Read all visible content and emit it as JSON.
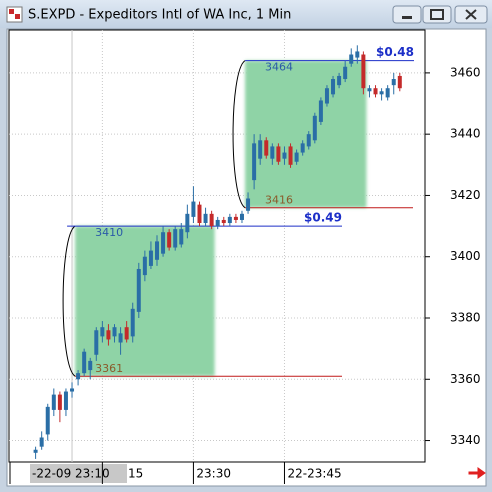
{
  "window": {
    "title": "S.EXPD - Expeditors Intl of WA Inc, 1 Min"
  },
  "chart_data": {
    "type": "candlestick",
    "categories": [
      null,
      null,
      null,
      null,
      null,
      null,
      "-22-09 23:10",
      null,
      null,
      null,
      null,
      "15",
      null,
      null,
      null,
      null,
      null,
      null,
      null,
      null,
      null,
      null,
      null,
      null,
      null,
      null,
      "23:30",
      null,
      null,
      null,
      null,
      null,
      null,
      null,
      null,
      null,
      null,
      null,
      null,
      null,
      null,
      "22-23:45",
      null,
      null,
      null,
      null,
      null,
      null,
      null,
      null,
      null,
      null,
      null,
      null,
      null,
      null,
      null,
      null,
      null,
      null,
      null
    ],
    "open": [
      3336,
      3338,
      3342,
      3350,
      3355,
      3350,
      3356,
      3360,
      3362,
      3363,
      3368,
      3374,
      3376,
      3374,
      3372,
      3377,
      3374,
      3382,
      3394,
      3397,
      3399,
      3401,
      3408,
      3403,
      3404,
      3408,
      3413,
      3417,
      3411,
      3414,
      3410,
      3412,
      3411,
      3413,
      3412,
      3415,
      3425,
      3432,
      3438,
      3432,
      3436,
      3432,
      3436,
      3431,
      3434,
      3436,
      3438,
      3444,
      3450,
      3453,
      3456,
      3458,
      3463,
      3465,
      3466,
      3454,
      3455,
      3453,
      3452,
      3456,
      3459
    ],
    "high": [
      3338,
      3343,
      3352,
      3357,
      3356,
      3357,
      3359,
      3363,
      3370,
      3367,
      3377,
      3379,
      3378,
      3378,
      3377,
      3379,
      3385,
      3398,
      3402,
      3405,
      3407,
      3410,
      3409,
      3410,
      3411,
      3417,
      3423,
      3418,
      3416,
      3415,
      3413,
      3413,
      3414,
      3414,
      3415,
      3421,
      3440,
      3440,
      3439,
      3437,
      3437,
      3436,
      3437,
      3435,
      3438,
      3441,
      3447,
      3452,
      3456,
      3459,
      3460,
      3464,
      3468,
      3469,
      3467,
      3456,
      3456,
      3455,
      3456,
      3460,
      3460
    ],
    "low": [
      3334,
      3337,
      3340,
      3348,
      3346,
      3348,
      3354,
      3358,
      3361,
      3360,
      3366,
      3372,
      3371,
      3372,
      3368,
      3372,
      3372,
      3380,
      3392,
      3396,
      3397,
      3400,
      3402,
      3402,
      3403,
      3406,
      3411,
      3410,
      3410,
      3409,
      3409,
      3410,
      3410,
      3411,
      3411,
      3414,
      3422,
      3430,
      3432,
      3430,
      3430,
      3430,
      3429,
      3430,
      3433,
      3435,
      3437,
      3443,
      3449,
      3452,
      3455,
      3457,
      3462,
      3463,
      3453,
      3452,
      3452,
      3451,
      3451,
      3453,
      3454
    ],
    "close": [
      3337,
      3341,
      3351,
      3355,
      3350,
      3356,
      3357,
      3362,
      3369,
      3366,
      3376,
      3377,
      3373,
      3377,
      3375,
      3373,
      3383,
      3396,
      3400,
      3402,
      3405,
      3408,
      3403,
      3409,
      3409,
      3414,
      3418,
      3411,
      3414,
      3410,
      3412,
      3411,
      3413,
      3412,
      3414,
      3419,
      3437,
      3438,
      3433,
      3436,
      3431,
      3434,
      3430,
      3434,
      3437,
      3440,
      3446,
      3451,
      3455,
      3458,
      3459,
      3462,
      3466,
      3467,
      3455,
      3455,
      3453,
      3454,
      3455,
      3458,
      3455
    ],
    "up_color": "#2a6ea6",
    "down_color": "#c42a2a",
    "ylim": [
      3333,
      3474
    ],
    "yticks": [
      3340,
      3360,
      3380,
      3400,
      3420,
      3440,
      3460
    ],
    "grid": true,
    "zones": [
      {
        "start": 7,
        "end": 29,
        "high": 3410,
        "low": 3361,
        "change": "$0.49"
      },
      {
        "start": 35,
        "end": 54,
        "high": 3464,
        "low": 3416,
        "change": "$0.48"
      }
    ]
  }
}
